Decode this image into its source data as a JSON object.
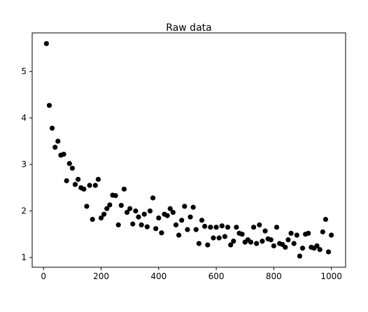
{
  "chart_data": {
    "type": "scatter",
    "title": "Raw data",
    "color": "#000000",
    "x": [
      10,
      20,
      30,
      40,
      50,
      60,
      70,
      80,
      90,
      100,
      110,
      120,
      130,
      140,
      150,
      160,
      170,
      180,
      190,
      200,
      210,
      220,
      230,
      240,
      250,
      260,
      270,
      280,
      290,
      300,
      310,
      320,
      330,
      340,
      350,
      360,
      370,
      380,
      390,
      400,
      410,
      420,
      430,
      440,
      450,
      460,
      470,
      480,
      490,
      500,
      510,
      520,
      530,
      540,
      550,
      560,
      570,
      580,
      590,
      600,
      610,
      620,
      630,
      640,
      650,
      660,
      670,
      680,
      690,
      700,
      710,
      720,
      730,
      740,
      750,
      760,
      770,
      780,
      790,
      800,
      810,
      820,
      830,
      840,
      850,
      860,
      870,
      880,
      890,
      900,
      910,
      920,
      930,
      940,
      950,
      960,
      970,
      980,
      990,
      1000
    ],
    "values": [
      5.6,
      4.27,
      3.78,
      3.37,
      3.5,
      3.2,
      3.22,
      2.65,
      3.02,
      2.92,
      2.57,
      2.68,
      2.5,
      2.47,
      2.1,
      2.55,
      1.82,
      2.55,
      2.68,
      1.85,
      1.93,
      2.05,
      2.13,
      2.34,
      2.33,
      1.7,
      2.12,
      2.47,
      1.97,
      2.05,
      1.72,
      2.0,
      1.87,
      1.7,
      1.93,
      1.66,
      2.0,
      2.28,
      1.62,
      1.85,
      1.53,
      1.93,
      1.9,
      2.05,
      1.97,
      1.7,
      1.48,
      1.8,
      2.1,
      1.6,
      1.87,
      2.08,
      1.6,
      1.3,
      1.8,
      1.67,
      1.27,
      1.65,
      1.42,
      1.65,
      1.42,
      1.68,
      1.45,
      1.65,
      1.27,
      1.35,
      1.65,
      1.52,
      1.5,
      1.33,
      1.38,
      1.33,
      1.65,
      1.3,
      1.7,
      1.35,
      1.57,
      1.4,
      1.38,
      1.25,
      1.65,
      1.3,
      1.28,
      1.22,
      1.38,
      1.52,
      1.3,
      1.48,
      1.03,
      1.2,
      1.5,
      1.52,
      1.22,
      1.2,
      1.25,
      1.17,
      1.55,
      1.82,
      1.12,
      1.48
    ],
    "xlim": [
      -39.5,
      1049.5
    ],
    "ylim": [
      0.79,
      5.83
    ],
    "xticks": [
      0,
      200,
      400,
      600,
      800,
      1000
    ],
    "yticks": [
      1,
      2,
      3,
      4,
      5
    ]
  }
}
